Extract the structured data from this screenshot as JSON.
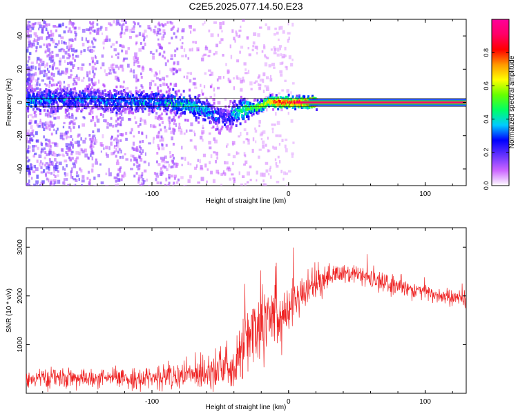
{
  "title": "C2E5.2025.077.14.50.E23",
  "chart_data": [
    {
      "type": "heatmap",
      "title": "C2E5.2025.077.14.50.E23",
      "xlabel": "Height of straight line (km)",
      "ylabel": "Frequency (Hz)",
      "xlim": [
        -192,
        130
      ],
      "ylim": [
        -50,
        50
      ],
      "xticks": [
        -100,
        0,
        100
      ],
      "yticks": [
        -40,
        -20,
        0,
        20,
        40
      ],
      "ridge": {
        "description": "frequency of peak spectral amplitude vs height",
        "x": [
          -190,
          -170,
          -150,
          -130,
          -110,
          -90,
          -75,
          -60,
          -50,
          -45,
          -40,
          -30,
          -20,
          -15,
          -10,
          0,
          10,
          20,
          130
        ],
        "y": [
          1,
          2,
          2,
          1,
          1,
          0,
          -2,
          -5,
          -9,
          -10,
          -6,
          -4,
          -2,
          1,
          0,
          0,
          0,
          0,
          0
        ],
        "amplitude": [
          0.35,
          0.3,
          0.3,
          0.3,
          0.3,
          0.35,
          0.4,
          0.35,
          0.25,
          0.2,
          0.4,
          0.5,
          0.6,
          0.7,
          0.85,
          0.85,
          0.9,
          0.95,
          0.95
        ]
      },
      "colorbar": {
        "label": "Normalized spectral amplitude",
        "ticks": [
          "0.0",
          "0.2",
          "0.4",
          "0.6",
          "0.8"
        ],
        "range": [
          0,
          1
        ],
        "colors": [
          "#ffffff",
          "#cc66ff",
          "#6633ff",
          "#0000ff",
          "#00ccff",
          "#00ff66",
          "#66ff00",
          "#ffff00",
          "#ff9900",
          "#ff0000",
          "#ff0066",
          "#ff0099"
        ]
      }
    },
    {
      "type": "line",
      "xlabel": "Height of straight line (km)",
      "ylabel": "SNR (10 * v/v)",
      "xlim": [
        -192,
        130
      ],
      "ylim": [
        0,
        3400
      ],
      "xticks": [
        -100,
        0,
        100
      ],
      "yticks": [
        1000,
        2000,
        3000
      ],
      "series": [
        {
          "name": "SNR",
          "color": "#ee2222",
          "x": [
            -192,
            -180,
            -170,
            -160,
            -150,
            -140,
            -130,
            -120,
            -110,
            -100,
            -90,
            -80,
            -70,
            -60,
            -50,
            -45,
            -40,
            -35,
            -30,
            -25,
            -20,
            -15,
            -10,
            -5,
            0,
            5,
            10,
            20,
            30,
            40,
            50,
            60,
            70,
            80,
            90,
            100,
            110,
            120,
            130
          ],
          "values": [
            300,
            310,
            300,
            310,
            300,
            290,
            300,
            300,
            300,
            320,
            330,
            350,
            390,
            470,
            560,
            500,
            400,
            800,
            1200,
            1400,
            1600,
            1800,
            1700,
            1650,
            1700,
            1850,
            2000,
            2250,
            2400,
            2480,
            2430,
            2330,
            2260,
            2200,
            2150,
            2080,
            2000,
            1960,
            1920
          ],
          "noise": [
            90,
            95,
            100,
            100,
            100,
            90,
            95,
            100,
            110,
            110,
            120,
            150,
            170,
            200,
            250,
            220,
            180,
            350,
            420,
            480,
            550,
            500,
            420,
            320,
            280,
            250,
            200,
            150,
            120,
            110,
            100,
            100,
            100,
            95,
            90,
            90,
            90,
            90,
            90
          ]
        }
      ]
    }
  ]
}
